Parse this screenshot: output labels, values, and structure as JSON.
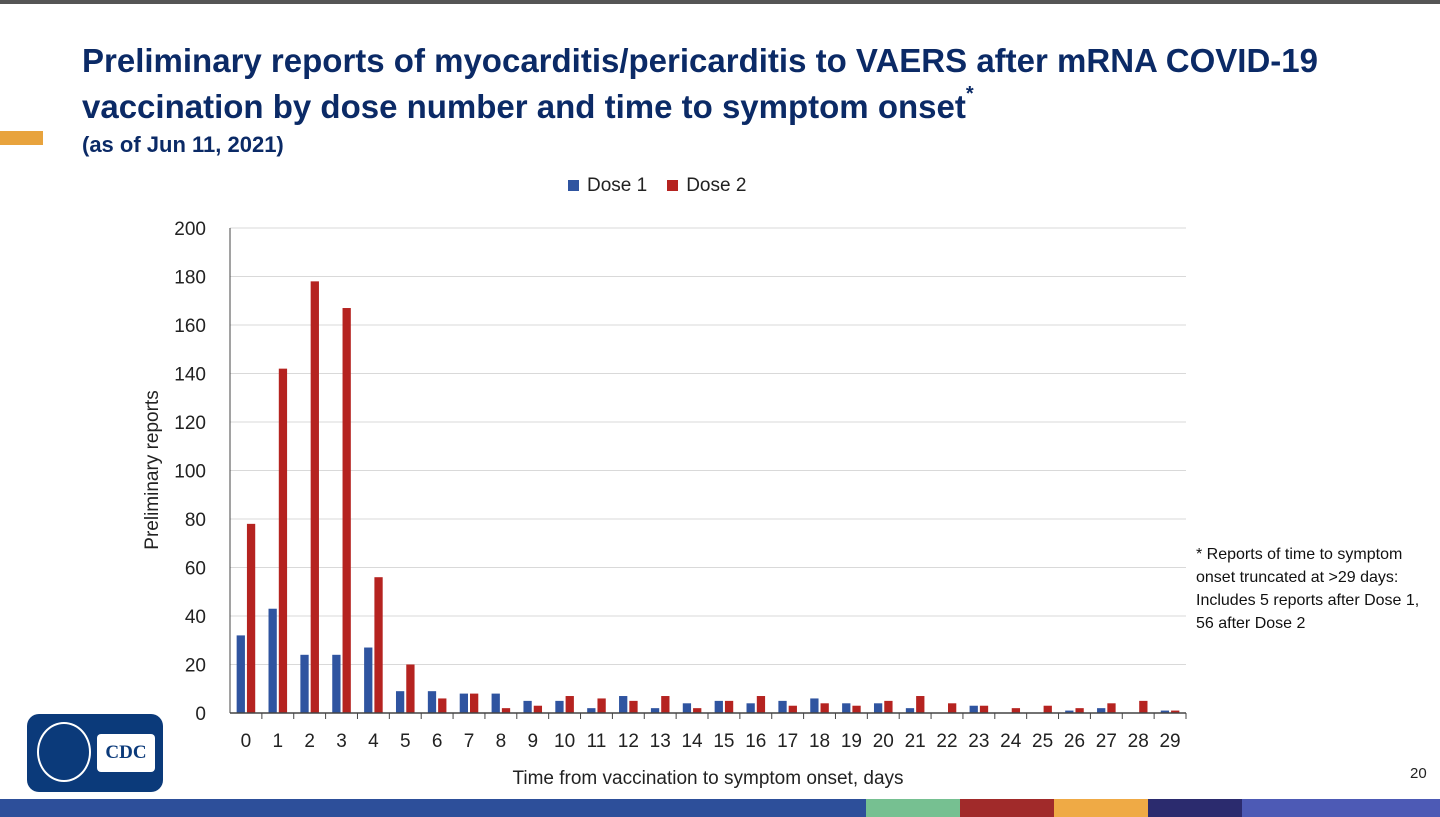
{
  "header": {
    "title": "Preliminary reports of myocarditis/pericarditis to VAERS after mRNA COVID-19 vaccination by dose number and time to symptom onset",
    "title_mark": "*",
    "subtitle": "(as of Jun 11, 2021)"
  },
  "note": "* Reports of time to symptom onset truncated at >29 days: Includes 5 reports after Dose 1, 56 after Dose 2",
  "page_number": "20",
  "logo": {
    "text": "CDC"
  },
  "colors": {
    "title": "#0b2a66",
    "dose1": "#2f54a0",
    "dose2": "#b52320",
    "accent": "#e8a33d"
  },
  "footer_colors": [
    "#2d4f9a",
    "#76c091",
    "#a12a2a",
    "#efaa45",
    "#2b2b6e",
    "#4d5ab5"
  ],
  "chart_data": {
    "type": "bar",
    "xlabel": "Time from vaccination to symptom onset, days",
    "ylabel": "Preliminary reports",
    "ylim": [
      0,
      200
    ],
    "yticks": [
      0,
      20,
      40,
      60,
      80,
      100,
      120,
      140,
      160,
      180,
      200
    ],
    "grid": true,
    "legend": "top",
    "categories": [
      "0",
      "1",
      "2",
      "3",
      "4",
      "5",
      "6",
      "7",
      "8",
      "9",
      "10",
      "11",
      "12",
      "13",
      "14",
      "15",
      "16",
      "17",
      "18",
      "19",
      "20",
      "21",
      "22",
      "23",
      "24",
      "25",
      "26",
      "27",
      "28",
      "29"
    ],
    "series": [
      {
        "name": "Dose 1",
        "color": "#2f54a0",
        "values": [
          32,
          43,
          24,
          24,
          27,
          9,
          9,
          8,
          8,
          5,
          5,
          2,
          7,
          2,
          4,
          5,
          4,
          5,
          6,
          4,
          4,
          2,
          0,
          3,
          0,
          0,
          1,
          2,
          0,
          1
        ]
      },
      {
        "name": "Dose 2",
        "color": "#b52320",
        "values": [
          78,
          142,
          178,
          167,
          56,
          20,
          6,
          8,
          2,
          3,
          7,
          6,
          5,
          7,
          2,
          5,
          7,
          3,
          4,
          3,
          5,
          7,
          4,
          3,
          2,
          3,
          2,
          4,
          5,
          1
        ]
      }
    ]
  }
}
